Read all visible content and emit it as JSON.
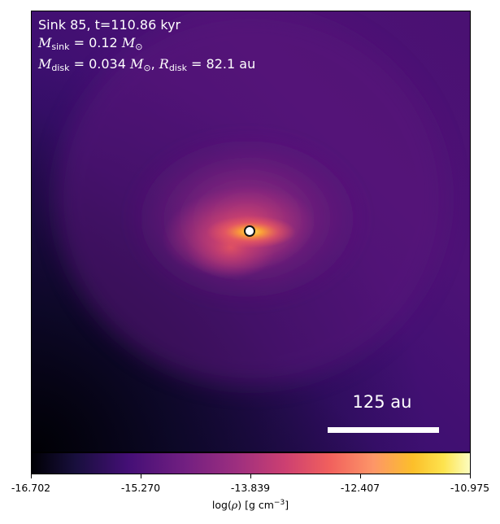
{
  "annotation": {
    "line1": "Sink 85, t=110.86 kyr",
    "sink_mass_symbol": "M",
    "sink_mass_sub": "sink",
    "sink_mass_value": " = 0.12 ",
    "sun_symbol": "M",
    "sun_sub": "⊙",
    "disk_mass_symbol": "M",
    "disk_mass_sub": "disk",
    "disk_mass_value": " = 0.034 ",
    "disk_sun_symbol": "M",
    "disk_sun_sub": "⊙",
    "radius_sep": ", ",
    "disk_radius_symbol": "R",
    "disk_radius_sub": "disk",
    "disk_radius_value": " = 82.1 au"
  },
  "scale_bar": {
    "label": "125 au"
  },
  "colorbar": {
    "colormap": "inferno",
    "ticks": [
      "-16.702",
      "-15.270",
      "-13.839",
      "-12.407",
      "-10.975"
    ],
    "label_prefix": "log(",
    "label_symbol": "ρ",
    "label_suffix": ") [g cm",
    "label_exp": "−3",
    "label_end": "]"
  },
  "colors": {
    "background_dark": "#000004",
    "envelope": "#440f76",
    "core": "#f1605d",
    "peak": "#fcbf2a"
  },
  "marker": {
    "name": "sink-particle"
  }
}
